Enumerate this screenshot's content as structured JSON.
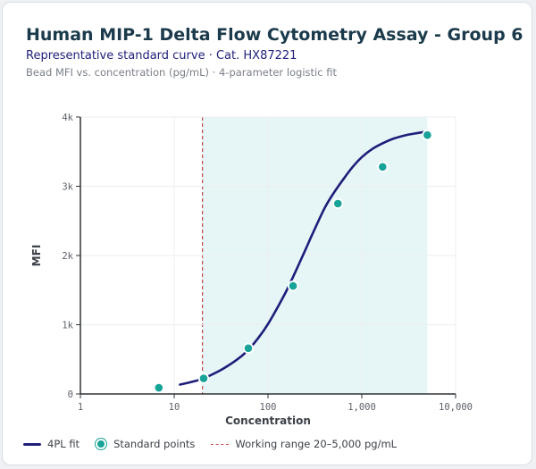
{
  "header": {
    "title": "Human MIP-1 Delta Flow Cytometry Assay - Group 6",
    "subtitle": "Representative standard curve · Cat. HX87221",
    "caption": "Bead MFI vs. concentration (pg/mL) · 4-parameter logistic fit"
  },
  "legend": {
    "fit_label": "4PL fit",
    "points_label": "Standard points",
    "range_label": "Working range 20–5,000 pg/mL"
  },
  "colors": {
    "fit": "#1f1d7a",
    "points": "#17a398",
    "range_line": "#c44a4a",
    "range_fill": "#e6f6f6",
    "grid": "#eceef1",
    "axis": "#2f3336"
  },
  "chart_data": {
    "type": "scatter",
    "xlabel": "Concentration",
    "ylabel": "MFI",
    "xscale": "log",
    "xlim": [
      1,
      10000
    ],
    "ylim": [
      0,
      4000
    ],
    "x_ticks": [
      "1",
      "10",
      "100",
      "1,000",
      "10,000"
    ],
    "y_ticks": [
      "0",
      "1k",
      "2k",
      "3k",
      "4k"
    ],
    "grid": true,
    "legend_position": "bottom",
    "working_range": [
      20,
      5000
    ],
    "series": [
      {
        "name": "Standard points",
        "x": [
          6.86,
          20.6,
          61.7,
          185,
          556,
          1667,
          5000
        ],
        "y": [
          90,
          225,
          660,
          1560,
          2750,
          3280,
          3740
        ]
      }
    ],
    "fit": {
      "name": "4PL fit",
      "x": [
        11.5,
        15,
        20,
        30,
        45,
        60,
        80,
        100,
        130,
        160,
        200,
        250,
        300,
        400,
        500,
        650,
        800,
        1000,
        1300,
        1667,
        2200,
        3000,
        4000,
        5000
      ],
      "y": [
        135,
        170,
        220,
        330,
        480,
        620,
        820,
        1010,
        1280,
        1510,
        1790,
        2080,
        2320,
        2680,
        2900,
        3120,
        3280,
        3420,
        3540,
        3620,
        3690,
        3740,
        3770,
        3790
      ]
    }
  }
}
